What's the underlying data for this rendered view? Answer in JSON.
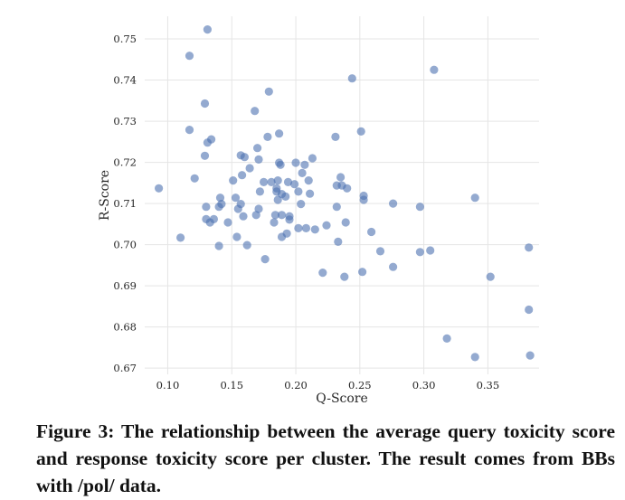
{
  "chart_data": {
    "type": "scatter",
    "xlabel": "Q-Score",
    "ylabel": "R-Score",
    "xlim": [
      0.082,
      0.39
    ],
    "ylim": [
      0.6685,
      0.7555
    ],
    "x_ticks": [
      "0.10",
      "0.15",
      "0.20",
      "0.25",
      "0.30",
      "0.35"
    ],
    "y_ticks": [
      "0.67",
      "0.68",
      "0.69",
      "0.70",
      "0.71",
      "0.72",
      "0.73",
      "0.74",
      "0.75"
    ],
    "grid": true,
    "background": "#ffffff",
    "grid_color": "#e5e5e5",
    "point_color": "#4c72b0",
    "points": [
      {
        "x": 0.093,
        "y": 0.7137
      },
      {
        "x": 0.11,
        "y": 0.7017
      },
      {
        "x": 0.117,
        "y": 0.7459
      },
      {
        "x": 0.117,
        "y": 0.7279
      },
      {
        "x": 0.121,
        "y": 0.7161
      },
      {
        "x": 0.129,
        "y": 0.7343
      },
      {
        "x": 0.129,
        "y": 0.7216
      },
      {
        "x": 0.131,
        "y": 0.7523
      },
      {
        "x": 0.131,
        "y": 0.7248
      },
      {
        "x": 0.134,
        "y": 0.7256
      },
      {
        "x": 0.13,
        "y": 0.7092
      },
      {
        "x": 0.13,
        "y": 0.7062
      },
      {
        "x": 0.133,
        "y": 0.7054
      },
      {
        "x": 0.136,
        "y": 0.7062
      },
      {
        "x": 0.14,
        "y": 0.7092
      },
      {
        "x": 0.141,
        "y": 0.7114
      },
      {
        "x": 0.142,
        "y": 0.7099
      },
      {
        "x": 0.14,
        "y": 0.6997
      },
      {
        "x": 0.147,
        "y": 0.7054
      },
      {
        "x": 0.151,
        "y": 0.7156
      },
      {
        "x": 0.153,
        "y": 0.7114
      },
      {
        "x": 0.154,
        "y": 0.7019
      },
      {
        "x": 0.155,
        "y": 0.7087
      },
      {
        "x": 0.157,
        "y": 0.7217
      },
      {
        "x": 0.157,
        "y": 0.7099
      },
      {
        "x": 0.158,
        "y": 0.7169
      },
      {
        "x": 0.159,
        "y": 0.7069
      },
      {
        "x": 0.16,
        "y": 0.7213
      },
      {
        "x": 0.162,
        "y": 0.6999
      },
      {
        "x": 0.164,
        "y": 0.7186
      },
      {
        "x": 0.168,
        "y": 0.7325
      },
      {
        "x": 0.169,
        "y": 0.7072
      },
      {
        "x": 0.17,
        "y": 0.7235
      },
      {
        "x": 0.171,
        "y": 0.7207
      },
      {
        "x": 0.171,
        "y": 0.7087
      },
      {
        "x": 0.172,
        "y": 0.7129
      },
      {
        "x": 0.175,
        "y": 0.7152
      },
      {
        "x": 0.176,
        "y": 0.6965
      },
      {
        "x": 0.178,
        "y": 0.7262
      },
      {
        "x": 0.179,
        "y": 0.7372
      },
      {
        "x": 0.181,
        "y": 0.7152
      },
      {
        "x": 0.183,
        "y": 0.7054
      },
      {
        "x": 0.184,
        "y": 0.7072
      },
      {
        "x": 0.185,
        "y": 0.7137
      },
      {
        "x": 0.185,
        "y": 0.7129
      },
      {
        "x": 0.186,
        "y": 0.7156
      },
      {
        "x": 0.186,
        "y": 0.7109
      },
      {
        "x": 0.187,
        "y": 0.727
      },
      {
        "x": 0.187,
        "y": 0.7199
      },
      {
        "x": 0.188,
        "y": 0.7194
      },
      {
        "x": 0.189,
        "y": 0.7123
      },
      {
        "x": 0.189,
        "y": 0.7072
      },
      {
        "x": 0.189,
        "y": 0.7019
      },
      {
        "x": 0.192,
        "y": 0.7117
      },
      {
        "x": 0.193,
        "y": 0.7027
      },
      {
        "x": 0.194,
        "y": 0.7152
      },
      {
        "x": 0.195,
        "y": 0.7069
      },
      {
        "x": 0.195,
        "y": 0.7061
      },
      {
        "x": 0.199,
        "y": 0.7147
      },
      {
        "x": 0.2,
        "y": 0.7199
      },
      {
        "x": 0.202,
        "y": 0.7129
      },
      {
        "x": 0.202,
        "y": 0.704
      },
      {
        "x": 0.204,
        "y": 0.7099
      },
      {
        "x": 0.205,
        "y": 0.7174
      },
      {
        "x": 0.207,
        "y": 0.7194
      },
      {
        "x": 0.208,
        "y": 0.704
      },
      {
        "x": 0.21,
        "y": 0.7156
      },
      {
        "x": 0.211,
        "y": 0.7124
      },
      {
        "x": 0.213,
        "y": 0.721
      },
      {
        "x": 0.215,
        "y": 0.7037
      },
      {
        "x": 0.221,
        "y": 0.6932
      },
      {
        "x": 0.224,
        "y": 0.7047
      },
      {
        "x": 0.231,
        "y": 0.7262
      },
      {
        "x": 0.232,
        "y": 0.7144
      },
      {
        "x": 0.232,
        "y": 0.7092
      },
      {
        "x": 0.233,
        "y": 0.7007
      },
      {
        "x": 0.235,
        "y": 0.7164
      },
      {
        "x": 0.236,
        "y": 0.7144
      },
      {
        "x": 0.238,
        "y": 0.6922
      },
      {
        "x": 0.239,
        "y": 0.7054
      },
      {
        "x": 0.24,
        "y": 0.7137
      },
      {
        "x": 0.244,
        "y": 0.7404
      },
      {
        "x": 0.251,
        "y": 0.7275
      },
      {
        "x": 0.252,
        "y": 0.6934
      },
      {
        "x": 0.253,
        "y": 0.7119
      },
      {
        "x": 0.253,
        "y": 0.7109
      },
      {
        "x": 0.259,
        "y": 0.7031
      },
      {
        "x": 0.266,
        "y": 0.6984
      },
      {
        "x": 0.276,
        "y": 0.71
      },
      {
        "x": 0.276,
        "y": 0.6946
      },
      {
        "x": 0.297,
        "y": 0.7092
      },
      {
        "x": 0.297,
        "y": 0.6982
      },
      {
        "x": 0.305,
        "y": 0.6986
      },
      {
        "x": 0.308,
        "y": 0.7425
      },
      {
        "x": 0.318,
        "y": 0.6772
      },
      {
        "x": 0.34,
        "y": 0.7114
      },
      {
        "x": 0.34,
        "y": 0.6727
      },
      {
        "x": 0.352,
        "y": 0.6922
      },
      {
        "x": 0.382,
        "y": 0.6993
      },
      {
        "x": 0.382,
        "y": 0.6842
      },
      {
        "x": 0.383,
        "y": 0.6731
      }
    ]
  },
  "caption": {
    "label": "Figure 3:",
    "text": " The relationship between the average query toxicity score and response toxicity score per cluster. The result comes from BBs with /pol/ data."
  }
}
